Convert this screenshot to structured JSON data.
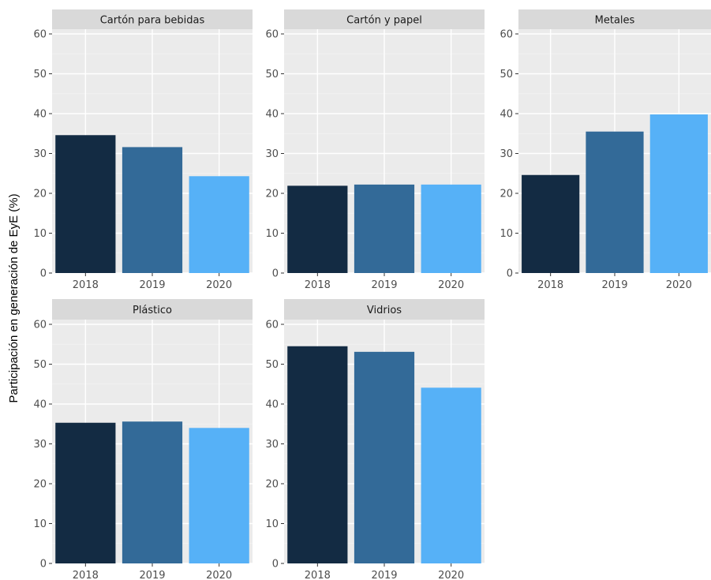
{
  "chart_data": {
    "type": "bar",
    "ylabel": "Participación en generación de EyE (%)",
    "ylim": [
      0,
      60
    ],
    "yticks": [
      0,
      10,
      20,
      30,
      40,
      50,
      60
    ],
    "categories": [
      "2018",
      "2019",
      "2020"
    ],
    "category_colors": [
      "#132B43",
      "#336A98",
      "#56B1F7"
    ],
    "grid": true,
    "legend": "none",
    "panels": [
      {
        "title": "Cartón para bebidas",
        "values": [
          34.6,
          31.6,
          24.3
        ]
      },
      {
        "title": "Cartón y papel",
        "values": [
          21.9,
          22.2,
          22.2
        ]
      },
      {
        "title": "Metales",
        "values": [
          24.6,
          35.5,
          39.8
        ]
      },
      {
        "title": "Plástico",
        "values": [
          35.3,
          35.6,
          34.0
        ]
      },
      {
        "title": "Vidrios",
        "values": [
          54.5,
          53.1,
          44.1
        ]
      }
    ]
  },
  "colors": {
    "panel_bg": "#EBEBEB",
    "strip_bg": "#D9D9D9",
    "grid_major": "#FFFFFF",
    "grid_minor": "#F2F2F2"
  }
}
